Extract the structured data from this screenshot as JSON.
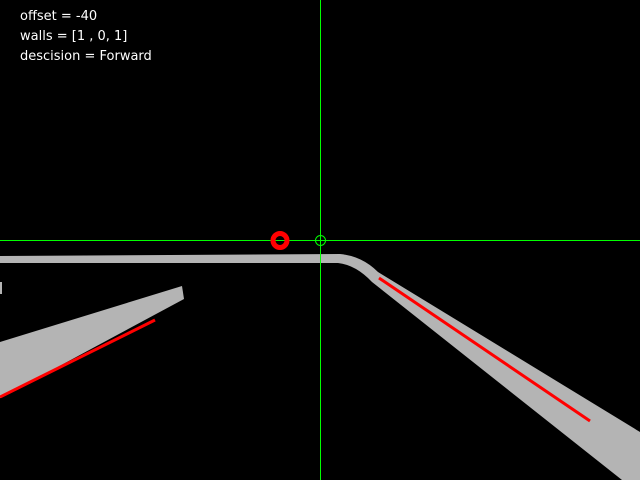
{
  "hud": {
    "offset_text": "offset = -40",
    "walls_text": "walls = [1 , 0, 1]",
    "decision_text": "descision = Forward"
  },
  "telemetry": {
    "offset": -40,
    "walls": [
      1,
      0,
      1
    ],
    "decision": "Forward"
  },
  "colors": {
    "background": "#000000",
    "guide": "#00ff00",
    "track": "#b4b4b4",
    "edge": "#ff0000",
    "marker": "#ff0000",
    "text": "#ffffff"
  }
}
